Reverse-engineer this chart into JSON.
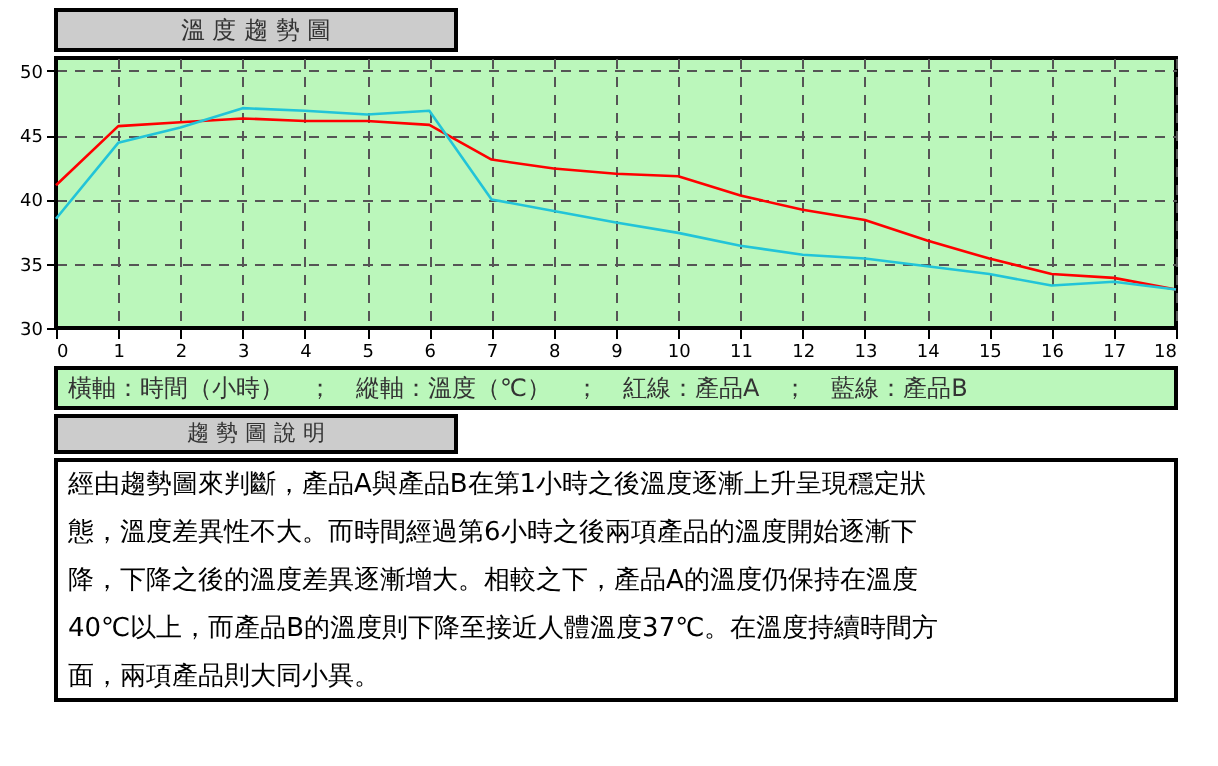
{
  "chart_data": {
    "type": "line",
    "title": "溫 度 趨 勢 圖",
    "x": [
      0,
      1,
      2,
      3,
      4,
      5,
      6,
      7,
      8,
      9,
      10,
      11,
      12,
      13,
      14,
      15,
      16,
      17,
      18
    ],
    "series": [
      {
        "color": "#ff0000",
        "values": [
          41.1,
          45.7,
          46.0,
          46.3,
          46.1,
          46.1,
          45.8,
          43.1,
          42.4,
          42.0,
          41.8,
          40.3,
          39.2,
          38.4,
          36.8,
          35.4,
          34.2,
          33.9,
          33.0
        ]
      },
      {
        "color": "#22c4d8",
        "values": [
          38.5,
          44.4,
          45.6,
          47.1,
          46.9,
          46.6,
          46.9,
          40.0,
          39.1,
          38.2,
          37.4,
          36.4,
          35.7,
          35.4,
          34.8,
          34.2,
          33.3,
          33.6,
          33.0
        ]
      }
    ],
    "xlim": [
      0,
      18
    ],
    "xticks": [
      0,
      1,
      2,
      3,
      4,
      5,
      6,
      7,
      8,
      9,
      10,
      11,
      12,
      13,
      14,
      15,
      16,
      17,
      18
    ],
    "ylim": [
      30,
      51
    ],
    "yticks": [
      30,
      35,
      40,
      45,
      50
    ],
    "grid": true,
    "marker": "none",
    "line_style": "solid",
    "legend": false,
    "annotations": [
      "橫軸：時間（小時）　；　縱軸：溫度（℃）　；　紅線：產品A　；　藍線：產品B",
      "趨 勢 圖 說 明",
      "經由趨勢圖來判斷，產品A與產品B在第1小時之後溫度逐漸上升呈現穩定狀",
      "態，溫度差異性不大。而時間經過第6小時之後兩項產品的溫度開始逐漸下",
      "降，下降之後的溫度差異逐漸增大。相較之下，產品A的溫度仍保持在溫度",
      "40℃以上，而產品B的溫度則下降至接近人體溫度37℃。在溫度持續時間方",
      "面，兩項產品則大同小異。"
    ]
  }
}
